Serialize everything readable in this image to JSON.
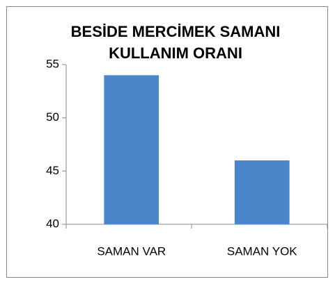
{
  "chart_data": {
    "type": "bar",
    "title": [
      "BESİDE MERCİMEK SAMANI",
      "KULLANIM ORANI"
    ],
    "categories": [
      "SAMAN VAR",
      "SAMAN YOK"
    ],
    "values": [
      54,
      46
    ],
    "color": "#4a86c8",
    "ylim": [
      40,
      55
    ],
    "yticks": [
      40,
      45,
      50,
      55
    ],
    "grid": false
  }
}
